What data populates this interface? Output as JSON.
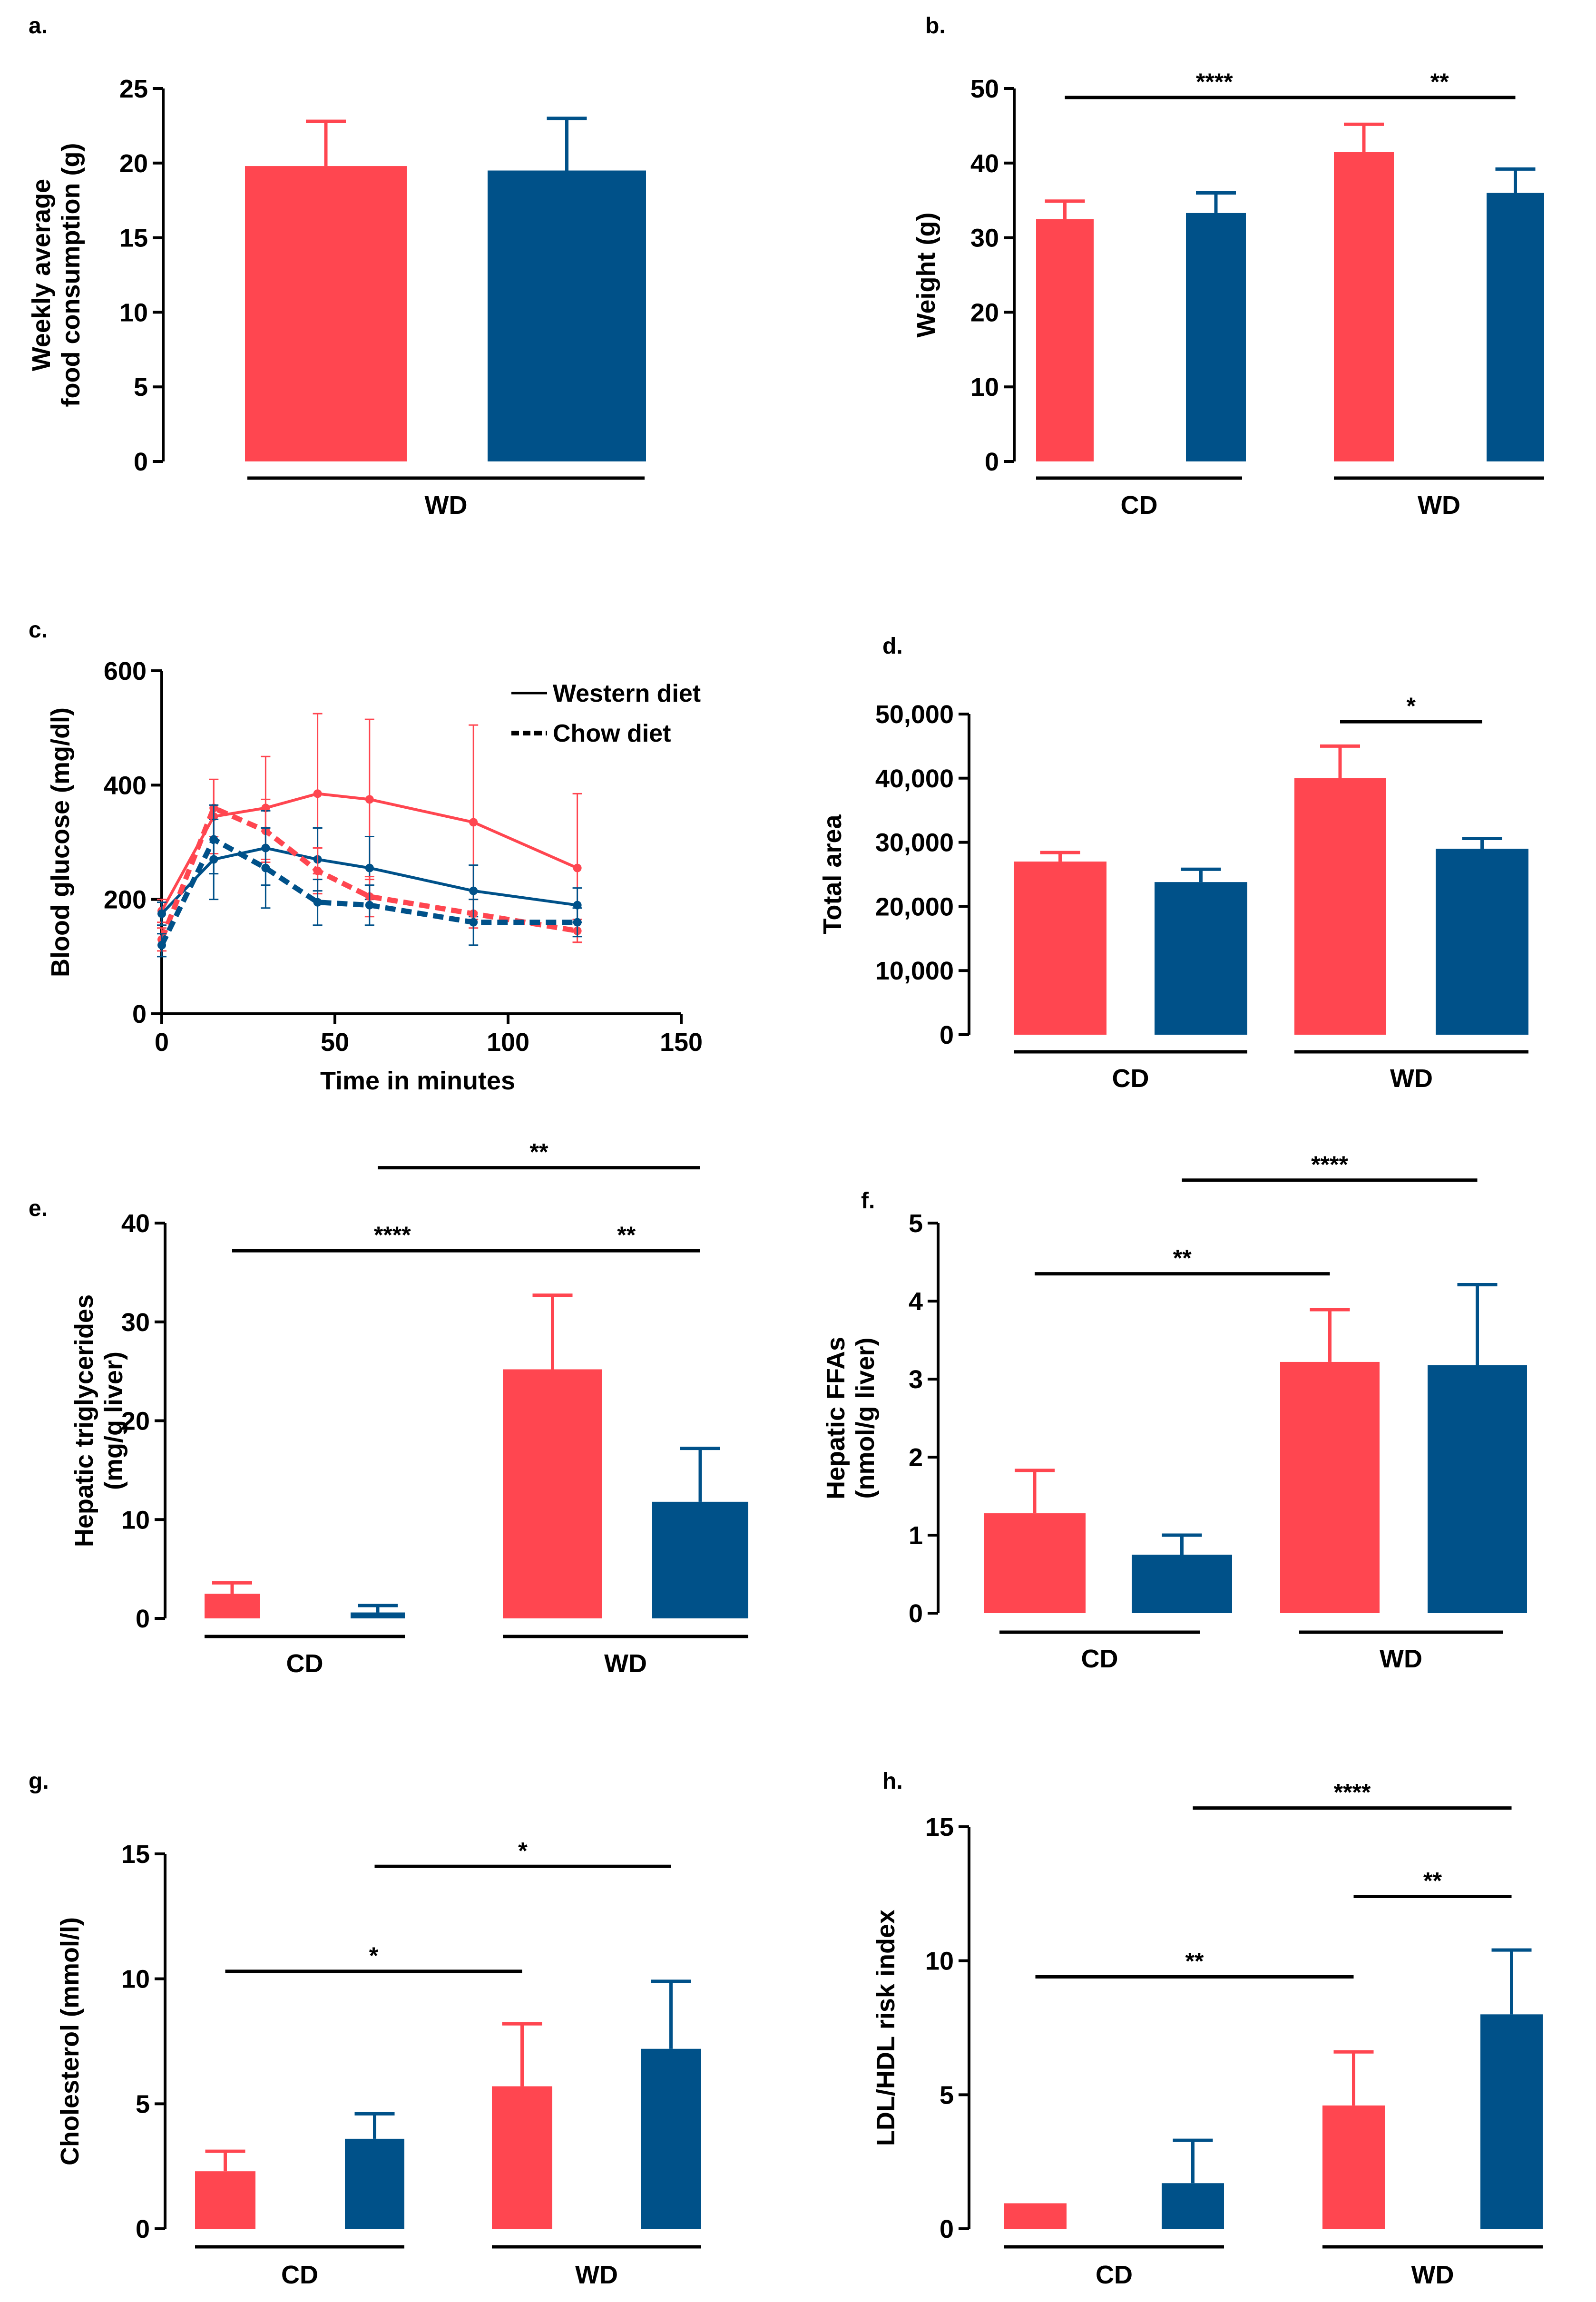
{
  "colors": {
    "red": "#FF4650",
    "blue": "#005189",
    "axis": "#000000"
  },
  "chart_data": [
    {
      "id": "a",
      "panel_label": "a.",
      "type": "bar",
      "ylabel_lines": [
        "Weekly average",
        "food consumption (g)"
      ],
      "ylim": [
        0,
        25
      ],
      "yticks": [
        0,
        5,
        10,
        15,
        20,
        25
      ],
      "ytick_labels": [
        "0",
        "5",
        "10",
        "15",
        "20",
        "25"
      ],
      "bars": [
        {
          "value": 19.8,
          "err": 3.0,
          "color": "red"
        },
        {
          "value": 19.5,
          "err": 3.5,
          "color": "blue"
        }
      ],
      "groups": [
        {
          "label": "WD",
          "bars": [
            0,
            1
          ]
        }
      ],
      "significance": []
    },
    {
      "id": "b",
      "panel_label": "b.",
      "type": "bar",
      "ylabel_lines": [
        "Weight (g)"
      ],
      "ylim": [
        0,
        50
      ],
      "yticks": [
        0,
        10,
        20,
        30,
        40,
        50
      ],
      "ytick_labels": [
        "0",
        "10",
        "20",
        "30",
        "40",
        "50"
      ],
      "bars": [
        {
          "value": 32.5,
          "err": 2.4,
          "color": "red"
        },
        {
          "value": 33.3,
          "err": 2.7,
          "color": "blue"
        },
        {
          "value": 41.5,
          "err": 3.7,
          "color": "red"
        },
        {
          "value": 36.0,
          "err": 3.2,
          "color": "blue"
        }
      ],
      "groups": [
        {
          "label": "CD",
          "bars": [
            0,
            1
          ]
        },
        {
          "label": "WD",
          "bars": [
            2,
            3
          ]
        }
      ],
      "significance": [
        {
          "from": 0,
          "to": 2,
          "label": "****",
          "y": 48.8
        },
        {
          "from": 2,
          "to": 3,
          "label": "**",
          "y": 48.8
        }
      ]
    },
    {
      "id": "c",
      "panel_label": "c.",
      "type": "line",
      "xlabel": "Time in minutes",
      "ylabel": "Blood glucose (mg/dl)",
      "xlim": [
        0,
        150
      ],
      "ylim": [
        0,
        600
      ],
      "xticks": [
        0,
        50,
        100,
        150
      ],
      "xtick_labels": [
        "0",
        "50",
        "100",
        "150"
      ],
      "yticks": [
        0,
        200,
        400,
        600
      ],
      "ytick_labels": [
        "0",
        "200",
        "400",
        "600"
      ],
      "legend": [
        {
          "label": "Western diet",
          "style": "solid"
        },
        {
          "label": "Chow diet",
          "style": "dashed"
        }
      ],
      "x": [
        0,
        15,
        30,
        45,
        60,
        90,
        120
      ],
      "series": [
        {
          "name": "Western diet (red)",
          "color": "red",
          "style": "solid",
          "values": [
            180,
            345,
            360,
            385,
            375,
            335,
            255
          ],
          "err": [
            20,
            65,
            90,
            140,
            140,
            170,
            130
          ]
        },
        {
          "name": "Western diet (blue)",
          "color": "blue",
          "style": "solid",
          "values": [
            175,
            270,
            290,
            270,
            255,
            215,
            190
          ],
          "err": [
            20,
            70,
            65,
            55,
            55,
            45,
            30
          ]
        },
        {
          "name": "Chow diet (red)",
          "color": "red",
          "style": "dashed",
          "values": [
            130,
            360,
            320,
            250,
            205,
            175,
            145
          ],
          "err": [
            20,
            50,
            55,
            40,
            35,
            25,
            20
          ]
        },
        {
          "name": "Chow diet (blue)",
          "color": "blue",
          "style": "dashed",
          "values": [
            120,
            305,
            255,
            195,
            190,
            160,
            160
          ],
          "err": [
            20,
            60,
            70,
            40,
            35,
            40,
            25
          ]
        }
      ]
    },
    {
      "id": "d",
      "panel_label": "d.",
      "type": "bar",
      "ylabel_lines": [
        "Total area"
      ],
      "ylim": [
        0,
        50000
      ],
      "yticks": [
        0,
        10000,
        20000,
        30000,
        40000,
        50000
      ],
      "ytick_labels": [
        "0",
        "10,000",
        "20,000",
        "30,000",
        "40,000",
        "50,000"
      ],
      "bars": [
        {
          "value": 27000,
          "err": 1400,
          "color": "red"
        },
        {
          "value": 23800,
          "err": 2000,
          "color": "blue"
        },
        {
          "value": 40000,
          "err": 5000,
          "color": "red"
        },
        {
          "value": 29000,
          "err": 1600,
          "color": "blue"
        }
      ],
      "groups": [
        {
          "label": "CD",
          "bars": [
            0,
            1
          ]
        },
        {
          "label": "WD",
          "bars": [
            2,
            3
          ]
        }
      ],
      "significance": [
        {
          "from": 2,
          "to": 3,
          "label": "*",
          "y": 48800
        }
      ]
    },
    {
      "id": "e",
      "panel_label": "e.",
      "type": "bar",
      "ylabel_lines": [
        "Hepatic triglycerides",
        "(mg/g liver)"
      ],
      "ylim": [
        0,
        40
      ],
      "yticks": [
        0,
        10,
        20,
        30,
        40
      ],
      "ytick_labels": [
        "0",
        "10",
        "20",
        "30",
        "40"
      ],
      "bars": [
        {
          "value": 2.5,
          "err": 1.1,
          "color": "red"
        },
        {
          "value": 0.6,
          "err": 0.7,
          "color": "blue"
        },
        {
          "value": 25.2,
          "err": 7.5,
          "color": "red"
        },
        {
          "value": 11.8,
          "err": 5.4,
          "color": "blue"
        }
      ],
      "groups": [
        {
          "label": "CD",
          "bars": [
            0,
            1
          ]
        },
        {
          "label": "WD",
          "bars": [
            2,
            3
          ]
        }
      ],
      "significance": [
        {
          "from": 1,
          "to": 3,
          "label": "**",
          "y": 45.6
        },
        {
          "from": 0,
          "to": 2,
          "label": "****",
          "y": 37.2
        },
        {
          "from": 2,
          "to": 3,
          "label": "**",
          "y": 37.2
        }
      ]
    },
    {
      "id": "f",
      "panel_label": "f.",
      "type": "bar",
      "ylabel_lines": [
        "Hepatic FFAs",
        "(nmol/g liver)"
      ],
      "ylim": [
        0,
        5
      ],
      "yticks": [
        0,
        1,
        2,
        3,
        4,
        5
      ],
      "ytick_labels": [
        "0",
        "1",
        "2",
        "3",
        "4",
        "5"
      ],
      "bars": [
        {
          "value": 1.28,
          "err": 0.55,
          "color": "red"
        },
        {
          "value": 0.75,
          "err": 0.25,
          "color": "blue"
        },
        {
          "value": 3.22,
          "err": 0.67,
          "color": "red"
        },
        {
          "value": 3.18,
          "err": 1.03,
          "color": "blue"
        }
      ],
      "groups": [
        {
          "label": "CD",
          "bars": [
            0,
            1
          ]
        },
        {
          "label": "WD",
          "bars": [
            2,
            3
          ]
        }
      ],
      "significance": [
        {
          "from": 1,
          "to": 3,
          "label": "****",
          "y": 5.55
        },
        {
          "from": 0,
          "to": 2,
          "label": "**",
          "y": 4.35
        }
      ]
    },
    {
      "id": "g",
      "panel_label": "g.",
      "type": "bar",
      "ylabel_lines": [
        "Cholesterol (mmol/l)"
      ],
      "ylim": [
        0,
        15
      ],
      "yticks": [
        0,
        5,
        10,
        15
      ],
      "ytick_labels": [
        "0",
        "5",
        "10",
        "15"
      ],
      "bars": [
        {
          "value": 2.3,
          "err": 0.8,
          "color": "red"
        },
        {
          "value": 3.6,
          "err": 1.0,
          "color": "blue"
        },
        {
          "value": 5.7,
          "err": 2.5,
          "color": "red"
        },
        {
          "value": 7.2,
          "err": 2.7,
          "color": "blue"
        }
      ],
      "groups": [
        {
          "label": "CD",
          "bars": [
            0,
            1
          ]
        },
        {
          "label": "WD",
          "bars": [
            2,
            3
          ]
        }
      ],
      "significance": [
        {
          "from": 1,
          "to": 3,
          "label": "*",
          "y": 14.5
        },
        {
          "from": 0,
          "to": 2,
          "label": "*",
          "y": 10.3
        }
      ]
    },
    {
      "id": "h",
      "panel_label": "h.",
      "type": "bar",
      "ylabel_lines": [
        "LDL/HDL risk index"
      ],
      "ylim": [
        0,
        15
      ],
      "yticks": [
        0,
        5,
        10,
        15
      ],
      "ytick_labels": [
        "0",
        "5",
        "10",
        "15"
      ],
      "bars": [
        {
          "value": 0.95,
          "err": 0.0,
          "color": "red"
        },
        {
          "value": 1.7,
          "err": 1.6,
          "color": "blue"
        },
        {
          "value": 4.6,
          "err": 2.0,
          "color": "red"
        },
        {
          "value": 8.0,
          "err": 2.4,
          "color": "blue"
        }
      ],
      "groups": [
        {
          "label": "CD",
          "bars": [
            0,
            1
          ]
        },
        {
          "label": "WD",
          "bars": [
            2,
            3
          ]
        }
      ],
      "significance": [
        {
          "from": 1,
          "to": 3,
          "label": "****",
          "y": 15.7
        },
        {
          "from": 2,
          "to": 3,
          "label": "**",
          "y": 12.4
        },
        {
          "from": 0,
          "to": 2,
          "label": "**",
          "y": 9.4
        }
      ]
    }
  ]
}
